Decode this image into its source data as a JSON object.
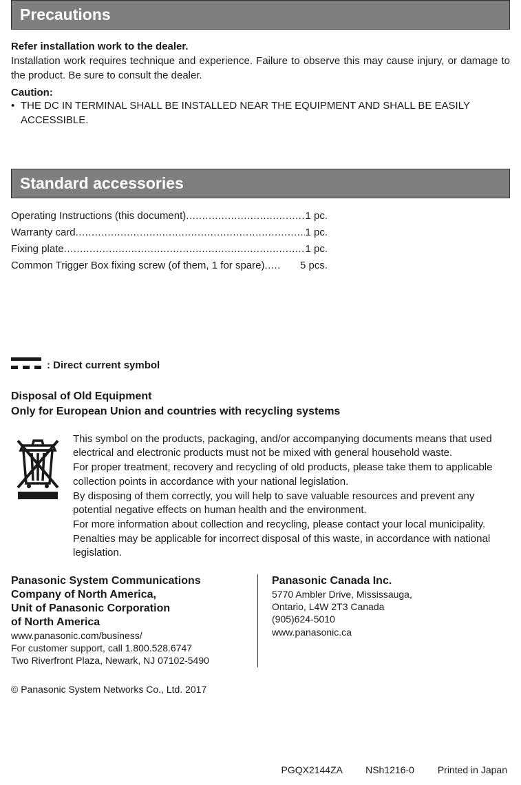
{
  "sections": {
    "precautions_title": "Precautions",
    "standard_accessories_title": "Standard accessories"
  },
  "precautions": {
    "heading": "Refer installation work to the dealer.",
    "body": "Installation work requires technique and experience. Failure to observe this may cause injury, or damage to the product. Be sure to consult the dealer.",
    "caution_label": "Caution:",
    "caution_item": "THE DC IN TERMINAL SHALL BE INSTALLED NEAR THE EQUIPMENT AND SHALL BE EASILY ACCESSIBLE."
  },
  "accessories": {
    "items": [
      {
        "label": "Operating Instructions (this document)",
        "qty": "1 pc."
      },
      {
        "label": "Warranty card",
        "qty": "1 pc."
      },
      {
        "label": "Fixing plate",
        "qty": "1 pc."
      },
      {
        "label": "Common Trigger Box fixing screw (of them, 1 for spare)",
        "qty": "5 pcs."
      }
    ]
  },
  "dc_symbol_label": ": Direct current symbol",
  "disposal": {
    "heading_line1": "Disposal of Old Equipment",
    "heading_line2": "Only for European Union and countries with recycling systems",
    "para1": "This symbol on the products, packaging, and/or accompanying documents means that used electrical and electronic products must not be mixed with general household waste.",
    "para2": "For proper treatment, recovery and recycling of old products, please take them to applicable collection points in accordance with your national legislation.",
    "para3": "By disposing of them correctly, you will help to save valuable resources and prevent any potential negative effects on human health and the environment.",
    "para4": "For more information about collection and recycling, please contact your local municipality.",
    "para5": "Penalties may be applicable for incorrect disposal of this waste, in accordance with national legislation."
  },
  "contacts": {
    "left": {
      "name_line1": "Panasonic System Communications",
      "name_line2": "Company of North America,",
      "name_line3": "Unit of Panasonic Corporation",
      "name_line4": "of North America",
      "url": "www.panasonic.com/business/",
      "support": "For customer support, call 1.800.528.6747",
      "address": "Two Riverfront Plaza, Newark, NJ  07102-5490"
    },
    "right": {
      "name": "Panasonic Canada Inc.",
      "addr_line1": "5770 Ambler Drive, Mississauga,",
      "addr_line2": "Ontario, L4W 2T3 Canada",
      "phone": "(905)624-5010",
      "url": "www.panasonic.ca"
    }
  },
  "copyright": "© Panasonic System Networks Co., Ltd. 2017",
  "footer": {
    "code1": "PGQX2144ZA",
    "code2": "NSh1216-0",
    "printed": "Printed in Japan"
  },
  "colors": {
    "header_bg": "#7f7f7f",
    "header_text": "#ffffff",
    "body_text": "#1a1a1a",
    "border": "#333333"
  }
}
